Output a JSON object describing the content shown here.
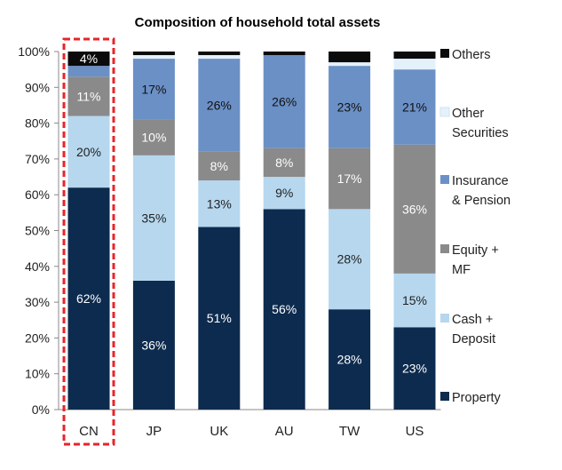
{
  "chart_data": {
    "type": "bar",
    "stacked": true,
    "title": "Composition of household total assets",
    "xlabel": "",
    "ylabel": "",
    "ylim": [
      0,
      100
    ],
    "y_ticks": [
      "0%",
      "10%",
      "20%",
      "30%",
      "40%",
      "50%",
      "60%",
      "70%",
      "80%",
      "90%",
      "100%"
    ],
    "categories": [
      "CN",
      "JP",
      "UK",
      "AU",
      "TW",
      "US"
    ],
    "highlight_category": "CN",
    "series": [
      {
        "name": "Property",
        "color": "#0d2b4e",
        "label_color": "#ffffff",
        "values": [
          62,
          36,
          51,
          56,
          28,
          23
        ],
        "labels": [
          "62%",
          "36%",
          "51%",
          "56%",
          "28%",
          "23%"
        ]
      },
      {
        "name": "Cash + Deposit",
        "color": "#b6d7ee",
        "label_color": "#222222",
        "values": [
          20,
          35,
          13,
          9,
          28,
          15
        ],
        "labels": [
          "20%",
          "35%",
          "13%",
          "9%",
          "28%",
          "15%"
        ]
      },
      {
        "name": "Equity + MF",
        "color": "#8a8a8a",
        "label_color": "#ffffff",
        "values": [
          11,
          10,
          8,
          8,
          17,
          36
        ],
        "labels": [
          "11%",
          "10%",
          "8%",
          "8%",
          "17%",
          "36%"
        ]
      },
      {
        "name": "Insurance & Pension",
        "color": "#6b90c6",
        "label_color": "#111111",
        "values": [
          3,
          17,
          26,
          26,
          23,
          21
        ],
        "labels": [
          "",
          "17%",
          "26%",
          "26%",
          "23%",
          "21%"
        ]
      },
      {
        "name": "Other Securities",
        "color": "#e4f1fb",
        "label_color": "#222222",
        "values": [
          0,
          1,
          1,
          0,
          1,
          3
        ],
        "labels": [
          "",
          "",
          "",
          "",
          "",
          ""
        ]
      },
      {
        "name": "Others",
        "color": "#0b0b0b",
        "label_color": "#ffffff",
        "values": [
          4,
          1,
          1,
          1,
          3,
          2
        ],
        "labels": [
          "4%",
          "",
          "",
          "",
          "",
          ""
        ]
      }
    ],
    "legend": {
      "placement": "right",
      "entries": [
        {
          "lines": [
            "Others"
          ],
          "color": "#0b0b0b"
        },
        {
          "lines": [
            "Other",
            "Securities"
          ],
          "color": "#e4f1fb"
        },
        {
          "lines": [
            "Insurance",
            "& Pension"
          ],
          "color": "#6b90c6"
        },
        {
          "lines": [
            "Equity +",
            "MF"
          ],
          "color": "#8a8a8a"
        },
        {
          "lines": [
            "Cash +",
            "Deposit"
          ],
          "color": "#b6d7ee"
        },
        {
          "lines": [
            "Property"
          ],
          "color": "#0d2b4e"
        }
      ]
    }
  }
}
